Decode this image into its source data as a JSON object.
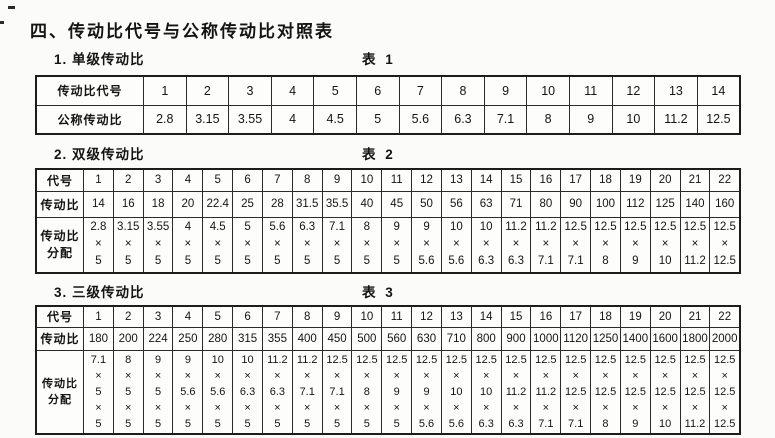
{
  "title": "四、传动比代号与公称传动比对照表",
  "sections": [
    {
      "heading": "1. 单级传动比",
      "table_label": "表 1",
      "rows": [
        {
          "header": "传动比代号",
          "cells": [
            "1",
            "2",
            "3",
            "4",
            "5",
            "6",
            "7",
            "8",
            "9",
            "10",
            "11",
            "12",
            "13",
            "14"
          ]
        },
        {
          "header": "公称传动比",
          "cells": [
            "2.8",
            "3.15",
            "3.55",
            "4",
            "4.5",
            "5",
            "5.6",
            "6.3",
            "7.1",
            "8",
            "9",
            "10",
            "11.2",
            "12.5"
          ]
        }
      ]
    },
    {
      "heading": "2. 双级传动比",
      "table_label": "表 2",
      "rows": [
        {
          "header": "代号",
          "cells": [
            "1",
            "2",
            "3",
            "4",
            "5",
            "6",
            "7",
            "8",
            "9",
            "10",
            "11",
            "12",
            "13",
            "14",
            "15",
            "16",
            "17",
            "18",
            "19",
            "20",
            "21",
            "22"
          ]
        },
        {
          "header": "传动比",
          "cells": [
            "14",
            "16",
            "18",
            "20",
            "22.4",
            "25",
            "28",
            "31.5",
            "35.5",
            "40",
            "45",
            "50",
            "56",
            "63",
            "71",
            "80",
            "90",
            "100",
            "112",
            "125",
            "140",
            "160"
          ]
        },
        {
          "header": "传动比\n分配",
          "cells": [
            "2.8\n×\n5",
            "3.15\n×\n5",
            "3.55\n×\n5",
            "4\n×\n5",
            "4.5\n×\n5",
            "5\n×\n5",
            "5.6\n×\n5",
            "6.3\n×\n5",
            "7.1\n×\n5",
            "8\n×\n5",
            "9\n×\n5",
            "9\n×\n5.6",
            "10\n×\n5.6",
            "10\n×\n6.3",
            "11.2\n×\n6.3",
            "11.2\n×\n7.1",
            "12.5\n×\n7.1",
            "12.5\n×\n8",
            "12.5\n×\n9",
            "12.5\n×\n10",
            "12.5\n×\n11.2",
            "12.5\n×\n12.5"
          ]
        }
      ]
    },
    {
      "heading": "3. 三级传动比",
      "table_label": "表 3",
      "rows": [
        {
          "header": "代号",
          "cells": [
            "1",
            "2",
            "3",
            "4",
            "5",
            "6",
            "7",
            "8",
            "9",
            "10",
            "11",
            "12",
            "13",
            "14",
            "15",
            "16",
            "17",
            "18",
            "19",
            "20",
            "21",
            "22"
          ]
        },
        {
          "header": "传动比",
          "cells": [
            "180",
            "200",
            "224",
            "250",
            "280",
            "315",
            "355",
            "400",
            "450",
            "500",
            "560",
            "630",
            "710",
            "800",
            "900",
            "1000",
            "1120",
            "1250",
            "1400",
            "1600",
            "1800",
            "2000"
          ]
        },
        {
          "header": "传动比\n分配",
          "cells": [
            "7.1\n×\n5\n×\n5",
            "8\n×\n5\n×\n5",
            "9\n×\n5\n×\n5",
            "9\n×\n5.6\n×\n5",
            "10\n×\n5.6\n×\n5",
            "10\n×\n6.3\n×\n5",
            "11.2\n×\n6.3\n×\n5",
            "11.2\n×\n7.1\n×\n5",
            "12.5\n×\n7.1\n×\n5",
            "12.5\n×\n8\n×\n5",
            "12.5\n×\n9\n×\n5",
            "12.5\n×\n9\n×\n5.6",
            "12.5\n×\n10\n×\n5.6",
            "12.5\n×\n10\n×\n6.3",
            "12.5\n×\n11.2\n×\n6.3",
            "12.5\n×\n11.2\n×\n7.1",
            "12.5\n×\n12.5\n×\n7.1",
            "12.5\n×\n12.5\n×\n8",
            "12.5\n×\n12.5\n×\n9",
            "12.5\n×\n12.5\n×\n10",
            "12.5\n×\n12.5\n×\n11.2",
            "12.5\n×\n12.5\n×\n12.5"
          ]
        }
      ]
    }
  ]
}
